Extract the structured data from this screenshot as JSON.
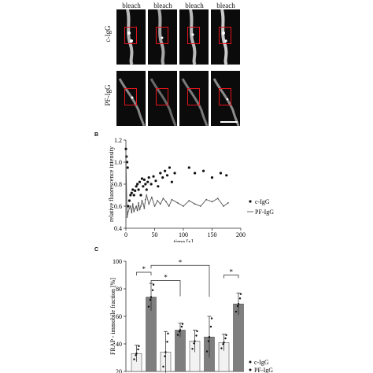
{
  "panel_a": {
    "column_labels": [
      "bleach",
      "bleach",
      "bleach",
      "bleach"
    ],
    "row_labels": [
      "c-IgG",
      "PF-IgG"
    ]
  },
  "panel_b": {
    "letter": "B"
  },
  "panel_c": {
    "letter": "C"
  },
  "chart_data": [
    {
      "type": "scatter",
      "panel": "B",
      "xlabel": "time [s]",
      "ylabel": "relative fluorescence intensity",
      "xlim": [
        0,
        200
      ],
      "ylim": [
        0.4,
        1.2
      ],
      "xticks": [
        "0",
        "50",
        "100",
        "150",
        "200"
      ],
      "yticks": [
        "0.4",
        "0.6",
        "0.8",
        "1.0",
        "1.2"
      ],
      "legend": "right",
      "series": [
        {
          "name": "c-IgG",
          "marker": "dot",
          "x": [
            0,
            1,
            2,
            3,
            4,
            6,
            8,
            10,
            12,
            14,
            16,
            18,
            20,
            22,
            24,
            26,
            28,
            30,
            32,
            34,
            36,
            38,
            40,
            44,
            48,
            52,
            56,
            60,
            64,
            68,
            72,
            76,
            80,
            85,
            110,
            120,
            135,
            150,
            165,
            175
          ],
          "y": [
            1.12,
            1.05,
            1.0,
            0.95,
            0.6,
            0.65,
            0.7,
            0.72,
            0.75,
            0.7,
            0.74,
            0.78,
            0.8,
            0.75,
            0.82,
            0.7,
            0.85,
            0.78,
            0.84,
            0.8,
            0.75,
            0.82,
            0.86,
            0.8,
            0.87,
            0.83,
            0.78,
            0.9,
            0.86,
            0.92,
            0.88,
            0.95,
            0.82,
            0.9,
            0.95,
            0.9,
            0.92,
            0.86,
            0.9,
            0.88
          ]
        },
        {
          "name": "PF-IgG",
          "marker": "line",
          "x": [
            0,
            2,
            4,
            6,
            8,
            10,
            12,
            14,
            16,
            18,
            20,
            22,
            24,
            26,
            28,
            30,
            32,
            34,
            36,
            40,
            45,
            50,
            55,
            60,
            65,
            70,
            75,
            80,
            90,
            100,
            110,
            120,
            130,
            140,
            150,
            160,
            170,
            178
          ],
          "y": [
            1.05,
            0.5,
            0.55,
            0.58,
            0.6,
            0.54,
            0.62,
            0.55,
            0.58,
            0.6,
            0.56,
            0.63,
            0.57,
            0.6,
            0.65,
            0.62,
            0.58,
            0.66,
            0.7,
            0.62,
            0.68,
            0.6,
            0.65,
            0.62,
            0.67,
            0.64,
            0.6,
            0.66,
            0.63,
            0.6,
            0.65,
            0.62,
            0.6,
            0.66,
            0.64,
            0.67,
            0.6,
            0.63
          ]
        }
      ]
    },
    {
      "type": "bar",
      "panel": "C",
      "ylabel": "FRAP - immobile fraction [%]",
      "ylim": [
        20,
        100
      ],
      "yticks": [
        "20",
        "40",
        "60",
        "80",
        "100"
      ],
      "legend": "bottom-right",
      "legend_entries": [
        "c-IgG",
        "PF-IgG"
      ],
      "bars": [
        {
          "series": "c-IgG",
          "value": 33,
          "err": 6
        },
        {
          "series": "PF-IgG",
          "value": 74,
          "err": 10
        },
        {
          "series": "c-IgG",
          "value": 34,
          "err": 15
        },
        {
          "series": "PF-IgG",
          "value": 50,
          "err": 5
        },
        {
          "series": "c-IgG",
          "value": 42,
          "err": 8
        },
        {
          "series": "PF-IgG",
          "value": 45,
          "err": 15
        },
        {
          "series": "c-IgG",
          "value": 41,
          "err": 6
        },
        {
          "series": "PF-IgG",
          "value": 69,
          "err": 8
        }
      ],
      "significance": [
        {
          "from": 0,
          "to": 1,
          "label": "*"
        },
        {
          "from": 1,
          "to": 3,
          "label": "*"
        },
        {
          "from": 1,
          "to": 5,
          "label": "*"
        },
        {
          "from": 6,
          "to": 7,
          "label": "*"
        }
      ]
    }
  ]
}
